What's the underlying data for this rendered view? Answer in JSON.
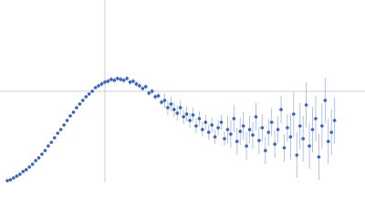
{
  "chart_data": {
    "type": "scatter",
    "color": "#3a62b5",
    "error_color": "#9fb4e0",
    "xlim": [
      0,
      3.48
    ],
    "ylim": [
      0,
      2
    ],
    "xticks": [
      1
    ],
    "yticks": [
      1
    ],
    "grid": true,
    "x": [
      0.07,
      0.1,
      0.13,
      0.16,
      0.19,
      0.22,
      0.25,
      0.28,
      0.31,
      0.34,
      0.37,
      0.4,
      0.43,
      0.46,
      0.49,
      0.52,
      0.55,
      0.58,
      0.61,
      0.64,
      0.67,
      0.7,
      0.73,
      0.76,
      0.79,
      0.82,
      0.85,
      0.88,
      0.91,
      0.94,
      0.97,
      1.0,
      1.03,
      1.06,
      1.09,
      1.12,
      1.15,
      1.18,
      1.21,
      1.24,
      1.27,
      1.3,
      1.33,
      1.36,
      1.39,
      1.42,
      1.45,
      1.48,
      1.51,
      1.54,
      1.57,
      1.6,
      1.63,
      1.66,
      1.69,
      1.72,
      1.75,
      1.78,
      1.81,
      1.84,
      1.87,
      1.9,
      1.93,
      1.96,
      1.99,
      2.02,
      2.05,
      2.08,
      2.11,
      2.14,
      2.17,
      2.2,
      2.23,
      2.26,
      2.29,
      2.32,
      2.35,
      2.38,
      2.41,
      2.44,
      2.47,
      2.5,
      2.53,
      2.56,
      2.59,
      2.62,
      2.65,
      2.68,
      2.71,
      2.74,
      2.77,
      2.8,
      2.83,
      2.86,
      2.89,
      2.92,
      2.95,
      2.98,
      3.01,
      3.04,
      3.07,
      3.1,
      3.13,
      3.16,
      3.19
    ],
    "values": [
      0.02,
      0.03,
      0.05,
      0.07,
      0.09,
      0.12,
      0.14,
      0.17,
      0.2,
      0.24,
      0.27,
      0.31,
      0.35,
      0.4,
      0.44,
      0.49,
      0.54,
      0.58,
      0.63,
      0.68,
      0.73,
      0.77,
      0.82,
      0.86,
      0.9,
      0.94,
      0.97,
      1.0,
      1.04,
      1.06,
      1.08,
      1.1,
      1.11,
      1.13,
      1.12,
      1.14,
      1.13,
      1.12,
      1.14,
      1.1,
      1.11,
      1.08,
      1.06,
      1.03,
      1.05,
      0.98,
      1.0,
      0.94,
      0.95,
      0.88,
      0.9,
      0.82,
      0.86,
      0.8,
      0.76,
      0.82,
      0.72,
      0.75,
      0.68,
      0.74,
      0.62,
      0.7,
      0.58,
      0.66,
      0.55,
      0.63,
      0.5,
      0.6,
      0.66,
      0.48,
      0.58,
      0.53,
      0.7,
      0.45,
      0.56,
      0.62,
      0.4,
      0.58,
      0.52,
      0.72,
      0.46,
      0.6,
      0.35,
      0.55,
      0.66,
      0.42,
      0.58,
      0.8,
      0.38,
      0.6,
      0.5,
      0.75,
      0.3,
      0.62,
      0.48,
      0.85,
      0.4,
      0.58,
      0.7,
      0.28,
      0.62,
      0.9,
      0.45,
      0.55,
      0.68
    ],
    "errors": [
      0.01,
      0.01,
      0.01,
      0.01,
      0.01,
      0.01,
      0.01,
      0.01,
      0.01,
      0.01,
      0.01,
      0.01,
      0.01,
      0.01,
      0.01,
      0.01,
      0.01,
      0.01,
      0.01,
      0.01,
      0.01,
      0.01,
      0.01,
      0.01,
      0.01,
      0.01,
      0.01,
      0.01,
      0.01,
      0.01,
      0.03,
      0.03,
      0.03,
      0.03,
      0.03,
      0.03,
      0.03,
      0.03,
      0.03,
      0.03,
      0.03,
      0.03,
      0.03,
      0.03,
      0.03,
      0.03,
      0.03,
      0.03,
      0.03,
      0.03,
      0.08,
      0.08,
      0.08,
      0.08,
      0.08,
      0.08,
      0.08,
      0.08,
      0.08,
      0.08,
      0.08,
      0.08,
      0.08,
      0.08,
      0.08,
      0.08,
      0.08,
      0.08,
      0.08,
      0.08,
      0.15,
      0.15,
      0.15,
      0.15,
      0.15,
      0.15,
      0.15,
      0.15,
      0.15,
      0.15,
      0.15,
      0.15,
      0.15,
      0.15,
      0.15,
      0.15,
      0.15,
      0.15,
      0.15,
      0.15,
      0.25,
      0.25,
      0.25,
      0.25,
      0.25,
      0.25,
      0.25,
      0.25,
      0.25,
      0.25,
      0.25,
      0.25,
      0.25,
      0.25,
      0.25
    ]
  }
}
